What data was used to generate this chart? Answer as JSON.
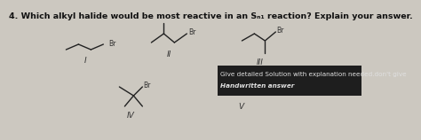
{
  "bg_color": "#ccc8c0",
  "title": "4. Which alkyl halide would be most reactive in an Sₙ₁ reaction? Explain your answer.",
  "title_fontsize": 6.8,
  "title_fontweight": "bold",
  "popup_bg": "#1e1e1e",
  "popup_text_line1": "Give detailed Solution with explanation needed.don't give",
  "popup_text_line2": "Handwritten answer",
  "popup_text_color": "#e0e0e0",
  "popup_fontsize": 5.2,
  "line_color": "#222222",
  "label_color": "#333333",
  "label_fontsize": 6.5,
  "br_fontsize": 5.5
}
